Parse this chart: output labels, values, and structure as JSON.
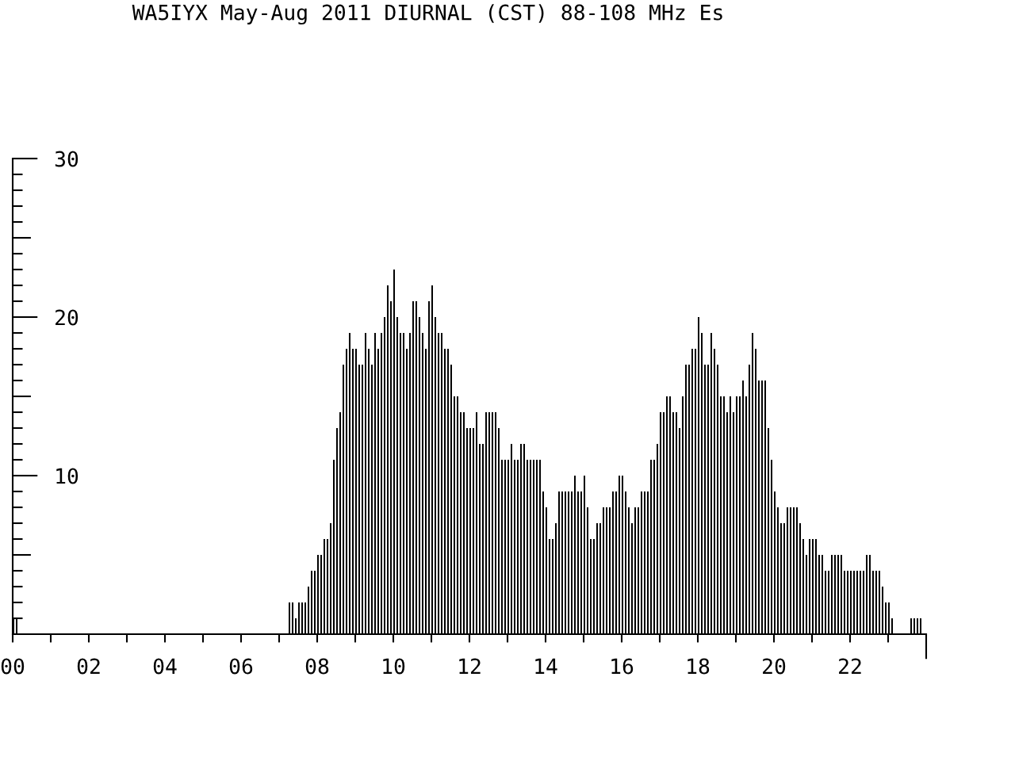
{
  "chart_data": {
    "type": "histogram",
    "title": "WA5IYX May-Aug 2011 DIURNAL (CST) 88-108 MHz Es",
    "color": "#000000",
    "bins": [
      0,
      0.083,
      0.167,
      0.25,
      0.333,
      0.417,
      0.5,
      0.583,
      0.667,
      0.75,
      0.833,
      0.917,
      1,
      1.083,
      1.167,
      1.25,
      1.333,
      1.417,
      1.5,
      1.583,
      1.667,
      1.75,
      1.833,
      1.917,
      2,
      2.083,
      2.167,
      2.25,
      2.333,
      2.417,
      2.5,
      2.583,
      2.667,
      2.75,
      2.833,
      2.917,
      3,
      3.083,
      3.167,
      3.25,
      3.333,
      3.417,
      3.5,
      3.583,
      3.667,
      3.75,
      3.833,
      3.917,
      4,
      4.083,
      4.167,
      4.25,
      4.333,
      4.417,
      4.5,
      4.583,
      4.667,
      4.75,
      4.833,
      4.917,
      5,
      5.083,
      5.167,
      5.25,
      5.333,
      5.417,
      5.5,
      5.583,
      5.667,
      5.75,
      5.833,
      5.917,
      6,
      6.083,
      6.167,
      6.25,
      6.333,
      6.417,
      6.5,
      6.583,
      6.667,
      6.75,
      6.833,
      6.917,
      7,
      7.083,
      7.167,
      7.25,
      7.333,
      7.417,
      7.5,
      7.583,
      7.667,
      7.75,
      7.833,
      7.917,
      8,
      8.083,
      8.167,
      8.25,
      8.333,
      8.417,
      8.5,
      8.583,
      8.667,
      8.75,
      8.833,
      8.917,
      9,
      9.083,
      9.167,
      9.25,
      9.333,
      9.417,
      9.5,
      9.583,
      9.667,
      9.75,
      9.833,
      9.917,
      10,
      10.083,
      10.167,
      10.25,
      10.333,
      10.417,
      10.5,
      10.583,
      10.667,
      10.75,
      10.833,
      10.917,
      11,
      11.083,
      11.167,
      11.25,
      11.333,
      11.417,
      11.5,
      11.583,
      11.667,
      11.75,
      11.833,
      11.917,
      12,
      12.083,
      12.167,
      12.25,
      12.333,
      12.417,
      12.5,
      12.583,
      12.667,
      12.75,
      12.833,
      12.917,
      13,
      13.083,
      13.167,
      13.25,
      13.333,
      13.417,
      13.5,
      13.583,
      13.667,
      13.75,
      13.833,
      13.917,
      14,
      14.083,
      14.167,
      14.25,
      14.333,
      14.417,
      14.5,
      14.583,
      14.667,
      14.75,
      14.833,
      14.917,
      15,
      15.083,
      15.167,
      15.25,
      15.333,
      15.417,
      15.5,
      15.583,
      15.667,
      15.75,
      15.833,
      15.917,
      16,
      16.083,
      16.167,
      16.25,
      16.333,
      16.417,
      16.5,
      16.583,
      16.667,
      16.75,
      16.833,
      16.917,
      17,
      17.083,
      17.167,
      17.25,
      17.333,
      17.417,
      17.5,
      17.583,
      17.667,
      17.75,
      17.833,
      17.917,
      18,
      18.083,
      18.167,
      18.25,
      18.333,
      18.417,
      18.5,
      18.583,
      18.667,
      18.75,
      18.833,
      18.917,
      19,
      19.083,
      19.167,
      19.25,
      19.333,
      19.417,
      19.5,
      19.583,
      19.667,
      19.75,
      19.833,
      19.917,
      20,
      20.083,
      20.167,
      20.25,
      20.333,
      20.417,
      20.5,
      20.583,
      20.667,
      20.75,
      20.833,
      20.917,
      21,
      21.083,
      21.167,
      21.25,
      21.333,
      21.417,
      21.5,
      21.583,
      21.667,
      21.75,
      21.833,
      21.917,
      22,
      22.083,
      22.167,
      22.25,
      22.333,
      22.417,
      22.5,
      22.583,
      22.667,
      22.75,
      22.833,
      22.917,
      23,
      23.083,
      23.167,
      23.25,
      23.333,
      23.417,
      23.5,
      23.583,
      23.667,
      23.75,
      23.833,
      23.917,
      24
    ],
    "values": [
      1,
      1,
      0,
      0,
      0,
      0,
      0,
      0,
      0,
      0,
      0,
      0,
      0,
      0,
      0,
      0,
      0,
      0,
      0,
      0,
      0,
      0,
      0,
      0,
      0,
      0,
      0,
      0,
      0,
      0,
      0,
      0,
      0,
      0,
      0,
      0,
      0,
      0,
      0,
      0,
      0,
      0,
      0,
      0,
      0,
      0,
      0,
      0,
      0,
      0,
      0,
      0,
      0,
      0,
      0,
      0,
      0,
      0,
      0,
      0,
      0,
      0,
      0,
      0,
      0,
      0,
      0,
      0,
      0,
      0,
      0,
      0,
      0,
      0,
      0,
      0,
      0,
      0,
      0,
      0,
      0,
      0,
      0,
      0,
      0,
      0,
      0,
      2,
      2,
      1,
      2,
      2,
      2,
      3,
      4,
      4,
      5,
      5,
      6,
      6,
      7,
      11,
      13,
      14,
      17,
      18,
      19,
      18,
      18,
      17,
      17,
      19,
      18,
      17,
      19,
      18,
      19,
      20,
      22,
      21,
      23,
      20,
      19,
      19,
      18,
      19,
      21,
      21,
      20,
      19,
      18,
      21,
      22,
      20,
      19,
      19,
      18,
      18,
      17,
      15,
      15,
      14,
      14,
      13,
      13,
      13,
      14,
      12,
      12,
      14,
      14,
      14,
      14,
      13,
      11,
      11,
      11,
      12,
      11,
      11,
      12,
      12,
      11,
      11,
      11,
      11,
      11,
      9,
      8,
      6,
      6,
      7,
      9,
      9,
      9,
      9,
      9,
      10,
      9,
      9,
      10,
      8,
      6,
      6,
      7,
      7,
      8,
      8,
      8,
      9,
      9,
      10,
      10,
      9,
      8,
      7,
      8,
      8,
      9,
      9,
      9,
      11,
      11,
      12,
      14,
      14,
      15,
      15,
      14,
      14,
      13,
      15,
      17,
      17,
      18,
      18,
      20,
      19,
      17,
      17,
      19,
      18,
      17,
      15,
      15,
      14,
      15,
      14,
      15,
      15,
      16,
      15,
      17,
      19,
      18,
      16,
      16,
      16,
      13,
      11,
      9,
      8,
      7,
      7,
      8,
      8,
      8,
      8,
      7,
      6,
      5,
      6,
      6,
      6,
      5,
      5,
      4,
      4,
      5,
      5,
      5,
      5,
      4,
      4,
      4,
      4,
      4,
      4,
      4,
      5,
      5,
      4,
      4,
      4,
      3,
      2,
      2,
      1,
      0,
      0,
      0,
      0,
      0,
      1,
      1,
      1,
      1,
      0
    ],
    "xlim": [
      0,
      24
    ],
    "ylim": [
      0,
      30
    ],
    "xticks": [
      {
        "value": 0,
        "label": "00"
      },
      {
        "value": 1,
        "label": null
      },
      {
        "value": 2,
        "label": "02"
      },
      {
        "value": 3,
        "label": null
      },
      {
        "value": 4,
        "label": "04"
      },
      {
        "value": 5,
        "label": null
      },
      {
        "value": 6,
        "label": "06"
      },
      {
        "value": 7,
        "label": null
      },
      {
        "value": 8,
        "label": "08"
      },
      {
        "value": 9,
        "label": null
      },
      {
        "value": 10,
        "label": "10"
      },
      {
        "value": 11,
        "label": null
      },
      {
        "value": 12,
        "label": "12"
      },
      {
        "value": 13,
        "label": null
      },
      {
        "value": 14,
        "label": "14"
      },
      {
        "value": 15,
        "label": null
      },
      {
        "value": 16,
        "label": "16"
      },
      {
        "value": 17,
        "label": null
      },
      {
        "value": 18,
        "label": "18"
      },
      {
        "value": 19,
        "label": null
      },
      {
        "value": 20,
        "label": "20"
      },
      {
        "value": 21,
        "label": null
      },
      {
        "value": 22,
        "label": "22"
      },
      {
        "value": 23,
        "label": null
      },
      {
        "value": 24,
        "label": null
      }
    ],
    "yticks": [
      {
        "value": 1,
        "label": null
      },
      {
        "value": 2,
        "label": null
      },
      {
        "value": 3,
        "label": null
      },
      {
        "value": 4,
        "label": null
      },
      {
        "value": 5,
        "label": null
      },
      {
        "value": 6,
        "label": null
      },
      {
        "value": 7,
        "label": null
      },
      {
        "value": 8,
        "label": null
      },
      {
        "value": 9,
        "label": null
      },
      10,
      {
        "value": 11,
        "label": null
      },
      {
        "value": 12,
        "label": null
      },
      {
        "value": 13,
        "label": null
      },
      {
        "value": 14,
        "label": null
      },
      {
        "value": 15,
        "label": null
      },
      {
        "value": 16,
        "label": null
      },
      {
        "value": 17,
        "label": null
      },
      {
        "value": 18,
        "label": null
      },
      {
        "value": 19,
        "label": null
      },
      20,
      {
        "value": 21,
        "label": null
      },
      {
        "value": 22,
        "label": null
      },
      {
        "value": 23,
        "label": null
      },
      {
        "value": 24,
        "label": null
      },
      {
        "value": 25,
        "label": null
      },
      {
        "value": 26,
        "label": null
      },
      {
        "value": 27,
        "label": null
      },
      {
        "value": 28,
        "label": null
      },
      {
        "value": 29,
        "label": null
      },
      30
    ]
  }
}
